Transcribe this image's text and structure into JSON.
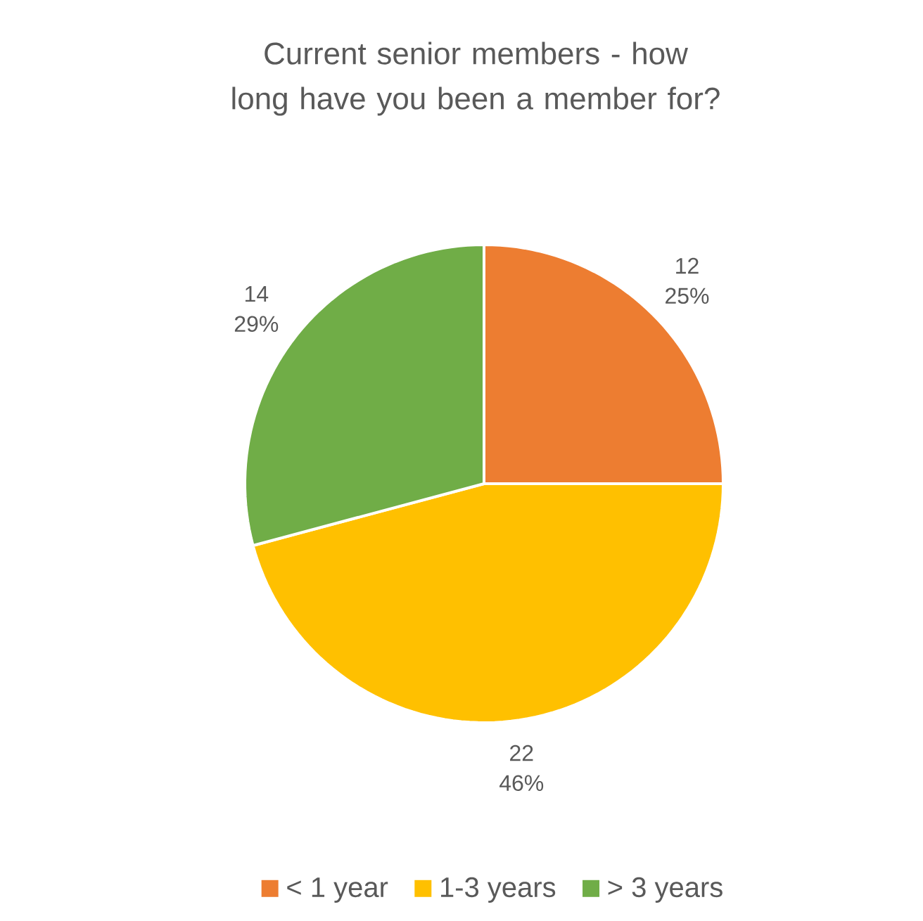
{
  "chart_data": {
    "type": "pie",
    "title": "Current senior members - how long have you been a member for?",
    "categories": [
      "< 1 year",
      "1-3 years",
      "> 3 years"
    ],
    "values": [
      12,
      22,
      14
    ],
    "data_labels": true,
    "colors": [
      "#ed7d31",
      "#ffc000",
      "#70ad47"
    ],
    "annotations": [
      "25%",
      "46%",
      "29%"
    ],
    "legend": "bottom"
  }
}
